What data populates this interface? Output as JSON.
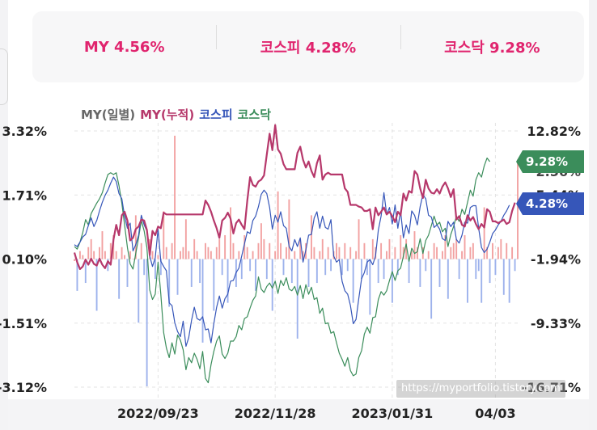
{
  "summary": {
    "my": "MY 4.56%",
    "kospi": "코스피 4.28%",
    "kosdaq": "코스닥 9.28%"
  },
  "legend": {
    "daily": "MY(일별)",
    "cumulative": "MY(누적)",
    "kospi": "코스피",
    "kosdaq": "코스닥"
  },
  "colors": {
    "daily": "#666666",
    "cumulative": "#b6386b",
    "kospi": "#3656b9",
    "kosdaq": "#3b8d5b",
    "bar_positive": "#f2a1a1",
    "bar_negative": "#9db2ec",
    "accent": "#e0246e"
  },
  "watermark": "https://myportfolio.tistory.com",
  "chart_data": {
    "type": "bar",
    "left_axis": {
      "ticks": [
        "3.32%",
        "1.71%",
        "0.10%",
        "-1.51%",
        "-3.12%"
      ],
      "tick_values": [
        3.32,
        1.71,
        0.1,
        -1.51,
        -3.12
      ],
      "range": [
        -3.12,
        3.32
      ]
    },
    "right_axis": {
      "ticks": [
        "12.82%",
        "5.44%",
        "-1.94%",
        "-9.33%",
        "-16.71%"
      ],
      "tick_values": [
        12.82,
        5.44,
        -1.94,
        -9.33,
        -16.71
      ],
      "range": [
        -16.71,
        12.82
      ],
      "overlapping_label": "2.56%"
    },
    "x_ticks": [
      "2022/09/23",
      "2022/11/28",
      "2023/01/31",
      "04/03"
    ],
    "x_tick_index": [
      30,
      72,
      114,
      151
    ],
    "end_labels": {
      "kosdaq": "9.28%",
      "kospi": "4.28%"
    },
    "daily_bars": [
      0.05,
      -0.7,
      0.3,
      0.2,
      -0.5,
      0.4,
      0.6,
      0.3,
      -1.2,
      0.4,
      0.8,
      0.3,
      -0.2,
      0.5,
      0.7,
      0.3,
      -0.9,
      0.4,
      0.2,
      -0.6,
      0.3,
      0.1,
      1.2,
      -1.5,
      0.5,
      -0.3,
      -3.1,
      0.6,
      0.3,
      -0.4,
      0.2,
      -0.3,
      1.3,
      0.4,
      -1.1,
      0.5,
      3.2,
      -0.8,
      0.3,
      0.4,
      1.1,
      0.3,
      -0.6,
      0.6,
      0.3,
      -0.5,
      -2.0,
      0.5,
      0.4,
      0.3,
      -1.2,
      0.4,
      0.6,
      -0.3,
      0.7,
      -1.0,
      1.4,
      0.5,
      -0.6,
      0.3,
      -0.4,
      0.7,
      0.4,
      -0.2,
      0.3,
      -0.7,
      0.5,
      1.0,
      0.6,
      -0.4,
      0.5,
      -1.2,
      0.3,
      1.8,
      0.5,
      -0.3,
      0.4,
      1.6,
      -0.5,
      0.3,
      -1.9,
      0.6,
      0.3,
      0.5,
      -0.6,
      1.2,
      0.4,
      -0.5,
      0.3,
      0.6,
      -0.3,
      0.4,
      -0.2,
      0.3,
      0.5,
      0.4,
      -0.3,
      0.5,
      -0.2,
      0.4,
      -1.0,
      0.3,
      1.1,
      -0.4,
      0.5,
      -0.3,
      -1.3,
      0.6,
      0.4,
      -0.5,
      0.5,
      -0.4,
      0.3,
      0.6,
      -1.0,
      0.4,
      -0.3,
      0.7,
      0.4,
      0.6,
      -0.5,
      0.3,
      0.8,
      0.4,
      -0.6,
      0.4,
      -0.2,
      0.3,
      -1.4,
      0.5,
      0.4,
      -0.6,
      0.3,
      0.7,
      -0.9,
      0.4,
      0.5,
      0.6,
      -0.4,
      0.3,
      0.7,
      -1.0,
      0.4,
      0.5,
      -0.4,
      -0.2,
      -1.0,
      1.4,
      0.4,
      -0.5,
      0.5,
      -0.3,
      0.4,
      0.6,
      -0.8,
      0.5,
      -1.0,
      0.4,
      -0.2,
      2.6
    ],
    "series": [
      {
        "name": "MY(누적)",
        "values": [
          -1.2,
          -2.3,
          -3.1,
          -2.8,
          -2.0,
          -2.6,
          -1.9,
          -2.5,
          -2.7,
          -1.9,
          -2.6,
          -3.0,
          -2.2,
          -2.6,
          0.3,
          2.0,
          0.8,
          3.1,
          3.5,
          2.5,
          0.2,
          0.5,
          1.5,
          1.8,
          2.6,
          2.5,
          1.4,
          -1.5,
          1.3,
          0.8,
          1.8,
          1.6,
          3.4,
          3.2,
          3.2,
          3.2,
          3.2,
          3.2,
          3.2,
          3.2,
          3.2,
          3.2,
          3.2,
          3.2,
          3.2,
          3.2,
          3.2,
          4.8,
          4.3,
          3.5,
          2.5,
          1.6,
          0.5,
          2.5,
          2.8,
          3.4,
          2.7,
          1.0,
          2.2,
          2.6,
          2.0,
          1.5,
          4.8,
          7.5,
          6.6,
          6.4,
          7.0,
          7.2,
          7.7,
          10.1,
          12.5,
          10.6,
          13.5,
          10.7,
          10.2,
          9.0,
          8.4,
          8.4,
          8.4,
          8.4,
          10.3,
          11.0,
          9.5,
          8.6,
          9.3,
          8.2,
          7.5,
          9.1,
          10.0,
          7.2,
          7.8,
          8.0,
          7.8,
          7.8,
          7.8,
          7.8,
          7.8,
          6.2,
          5.8,
          4.3,
          4.3,
          4.3,
          4.1,
          4.0,
          3.6,
          3.6,
          3.8,
          1.5,
          4.0,
          3.1,
          3.5,
          4.0,
          3.2,
          3.5,
          3.0,
          2.3,
          3.5,
          3.1,
          5.6,
          4.8,
          5.9,
          5.7,
          8.2,
          7.8,
          6.2,
          5.1,
          7.2,
          6.2,
          5.7,
          5.6,
          6.1,
          5.6,
          6.4,
          6.9,
          6.2,
          5.2,
          6.1,
          2.6,
          3.0,
          2.0,
          1.8,
          3.1,
          2.5,
          2.9,
          2.1,
          1.5,
          2.1,
          1.7,
          3.8,
          3.5,
          2.4,
          2.4,
          2.2,
          2.4,
          2.6,
          2.1,
          2.3,
          3.6,
          4.56
        ]
      },
      {
        "name": "코스피",
        "values": [
          -0.3,
          -0.5,
          0.0,
          0.6,
          0.9,
          1.9,
          2.8,
          1.8,
          2.5,
          3.6,
          4.6,
          5.4,
          6.0,
          6.8,
          7.5,
          7.0,
          5.6,
          5.0,
          3.0,
          1.6,
          2.2,
          -1.0,
          -0.3,
          0.8,
          3.1,
          2.0,
          1.3,
          -1.6,
          -2.8,
          -1.8,
          1.5,
          -2.2,
          -2.8,
          -3.3,
          -7.0,
          -7.3,
          -9.3,
          -10.3,
          -10.9,
          -9.1,
          -12.0,
          -11.0,
          -9.0,
          -7.5,
          -8.8,
          -9.0,
          -8.6,
          -10.1,
          -10.0,
          -11.6,
          -9.4,
          -7.5,
          -6.2,
          -7.6,
          -6.5,
          -6.0,
          -4.5,
          -4.4,
          -3.5,
          -3.0,
          -1.6,
          -0.2,
          1.2,
          1.0,
          2.5,
          3.0,
          4.1,
          5.5,
          6.0,
          5.6,
          4.0,
          1.5,
          3.1,
          2.3,
          3.5,
          1.9,
          1.6,
          -0.5,
          -1.0,
          0.3,
          -0.5,
          0.5,
          -2.3,
          -0.9,
          0.8,
          0.9,
          2.8,
          3.5,
          1.6,
          3.0,
          1.7,
          1.5,
          2.6,
          -1.6,
          -2.3,
          -2.0,
          -4.5,
          -5.6,
          -6.0,
          -7.3,
          -9.4,
          -8.9,
          -6.5,
          -4.2,
          -3.5,
          -2.3,
          -2.0,
          -2.6,
          -1.6,
          1.4,
          3.0,
          5.7,
          3.2,
          4.0,
          2.1,
          4.3,
          1.6,
          3.6,
          0.5,
          2.0,
          1.0,
          3.6,
          3.1,
          2.0,
          4.1,
          5.5,
          5.0,
          3.1,
          2.9,
          1.7,
          2.0,
          1.5,
          0.4,
          0.2,
          2.4,
          1.8,
          2.3,
          0.3,
          -0.1,
          0.8,
          2.3,
          2.2,
          4.0,
          4.2,
          4.2,
          1.6,
          -0.6,
          -1.2,
          -0.8,
          0.0,
          1.0,
          1.4,
          2.0,
          2.4,
          3.1,
          3.6,
          4.28
        ]
      },
      {
        "name": "코스닥",
        "values": [
          -0.5,
          -0.8,
          0.0,
          1.1,
          2.6,
          2.0,
          3.3,
          3.9,
          4.5,
          5.0,
          5.7,
          6.8,
          7.8,
          8.0,
          7.8,
          8.0,
          6.5,
          4.5,
          2.0,
          -0.6,
          -2.5,
          -3.1,
          -1.3,
          0.5,
          2.5,
          1.3,
          -0.6,
          -5.5,
          -6.6,
          -6.0,
          -2.3,
          -6.0,
          -10.4,
          -12.2,
          -13.3,
          -11.6,
          -12.9,
          -10.7,
          -11.3,
          -12.4,
          -14.7,
          -13.3,
          -13.9,
          -12.8,
          -13.5,
          -14.6,
          -12.6,
          -15.7,
          -16.2,
          -14.1,
          -12.6,
          -11.4,
          -10.8,
          -12.9,
          -13.4,
          -12.8,
          -11.4,
          -11.4,
          -10.9,
          -9.6,
          -10.1,
          -8.8,
          -8.6,
          -7.6,
          -6.7,
          -6.2,
          -4.0,
          -5.4,
          -5.8,
          -5.1,
          -4.7,
          -5.3,
          -4.5,
          -5.9,
          -4.4,
          -5.0,
          -4.1,
          -5.4,
          -5.6,
          -5.1,
          -6.1,
          -5.0,
          -6.5,
          -4.9,
          -6.0,
          -5.2,
          -6.6,
          -6.4,
          -8.2,
          -7.6,
          -9.4,
          -9.3,
          -10.5,
          -10.3,
          -11.6,
          -12.8,
          -13.5,
          -14.3,
          -13.3,
          -14.8,
          -15.4,
          -15.2,
          -13.3,
          -12.5,
          -10.6,
          -9.8,
          -10.5,
          -8.7,
          -8.6,
          -6.6,
          -5.7,
          -6.1,
          -5.6,
          -4.4,
          -3.4,
          -4.4,
          -3.3,
          -3.0,
          -1.6,
          -0.2,
          -2.2,
          -0.7,
          -1.3,
          -1.1,
          0.4,
          -1.3,
          0.2,
          0.8,
          1.9,
          3.0,
          2.0,
          2.3,
          1.2,
          1.6,
          -0.5,
          0.9,
          1.8,
          3.0,
          2.4,
          3.8,
          3.2,
          4.6,
          6.0,
          5.3,
          7.2,
          8.0,
          7.5,
          8.8,
          9.7,
          9.28
        ]
      }
    ]
  }
}
